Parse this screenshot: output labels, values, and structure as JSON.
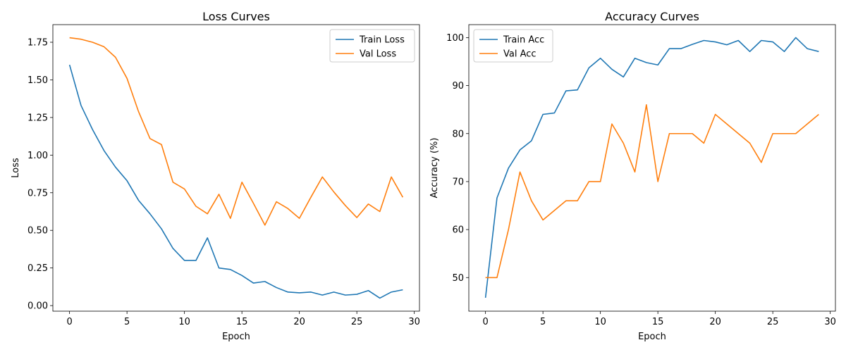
{
  "chart_data": [
    {
      "type": "line",
      "title": "Loss Curves",
      "xlabel": "Epoch",
      "ylabel": "Loss",
      "xlim": [
        -1.45,
        30.45
      ],
      "ylim": [
        -0.037,
        1.867
      ],
      "xticks": [
        0,
        5,
        10,
        15,
        20,
        25,
        30
      ],
      "yticks": [
        0.0,
        0.25,
        0.5,
        0.75,
        1.0,
        1.25,
        1.5,
        1.75
      ],
      "ytick_labels": [
        "0.00",
        "0.25",
        "0.50",
        "0.75",
        "1.00",
        "1.25",
        "1.50",
        "1.75"
      ],
      "legend_position": "top-right",
      "grid": false,
      "x": [
        0,
        1,
        2,
        3,
        4,
        5,
        6,
        7,
        8,
        9,
        10,
        11,
        12,
        13,
        14,
        15,
        16,
        17,
        18,
        19,
        20,
        21,
        22,
        23,
        24,
        25,
        26,
        27,
        28,
        29
      ],
      "series": [
        {
          "name": "Train Loss",
          "color": "#1f77b4",
          "values": [
            1.6,
            1.33,
            1.17,
            1.03,
            0.92,
            0.83,
            0.7,
            0.61,
            0.51,
            0.38,
            0.3,
            0.3,
            0.45,
            0.25,
            0.24,
            0.2,
            0.15,
            0.16,
            0.12,
            0.09,
            0.085,
            0.09,
            0.07,
            0.09,
            0.07,
            0.075,
            0.1,
            0.05,
            0.09,
            0.105
          ]
        },
        {
          "name": "Val Loss",
          "color": "#ff7f0e",
          "values": [
            1.78,
            1.77,
            1.75,
            1.72,
            1.65,
            1.51,
            1.29,
            1.11,
            1.07,
            0.82,
            0.775,
            0.66,
            0.61,
            0.74,
            0.58,
            0.82,
            0.68,
            0.535,
            0.69,
            0.645,
            0.58,
            0.72,
            0.855,
            0.755,
            0.665,
            0.585,
            0.675,
            0.625,
            0.855,
            0.72
          ]
        }
      ]
    },
    {
      "type": "line",
      "title": "Accuracy Curves",
      "xlabel": "Epoch",
      "ylabel": "Accuracy (%)",
      "xlim": [
        -1.45,
        30.45
      ],
      "ylim": [
        43.0,
        102.7
      ],
      "xticks": [
        0,
        5,
        10,
        15,
        20,
        25,
        30
      ],
      "yticks": [
        50,
        60,
        70,
        80,
        90,
        100
      ],
      "ytick_labels": [
        "50",
        "60",
        "70",
        "80",
        "90",
        "100"
      ],
      "legend_position": "top-left",
      "grid": false,
      "x": [
        0,
        1,
        2,
        3,
        4,
        5,
        6,
        7,
        8,
        9,
        10,
        11,
        12,
        13,
        14,
        15,
        16,
        17,
        18,
        19,
        20,
        21,
        22,
        23,
        24,
        25,
        26,
        27,
        28,
        29
      ],
      "series": [
        {
          "name": "Train Acc",
          "color": "#1f77b4",
          "values": [
            45.8,
            66.6,
            72.8,
            76.6,
            78.5,
            84.0,
            84.3,
            88.9,
            89.1,
            93.7,
            95.7,
            93.4,
            91.8,
            95.7,
            94.8,
            94.3,
            97.7,
            97.7,
            98.6,
            99.4,
            99.1,
            98.5,
            99.4,
            97.1,
            99.4,
            99.1,
            97.1,
            100.0,
            97.7,
            97.1
          ]
        },
        {
          "name": "Val Acc",
          "color": "#ff7f0e",
          "values": [
            50,
            50,
            60,
            72,
            66,
            62,
            64,
            66,
            66,
            70,
            70,
            82,
            78,
            72,
            86,
            70,
            80,
            80,
            80,
            78,
            84,
            82,
            80,
            78,
            74,
            80,
            80,
            80,
            82,
            84
          ]
        }
      ]
    }
  ]
}
